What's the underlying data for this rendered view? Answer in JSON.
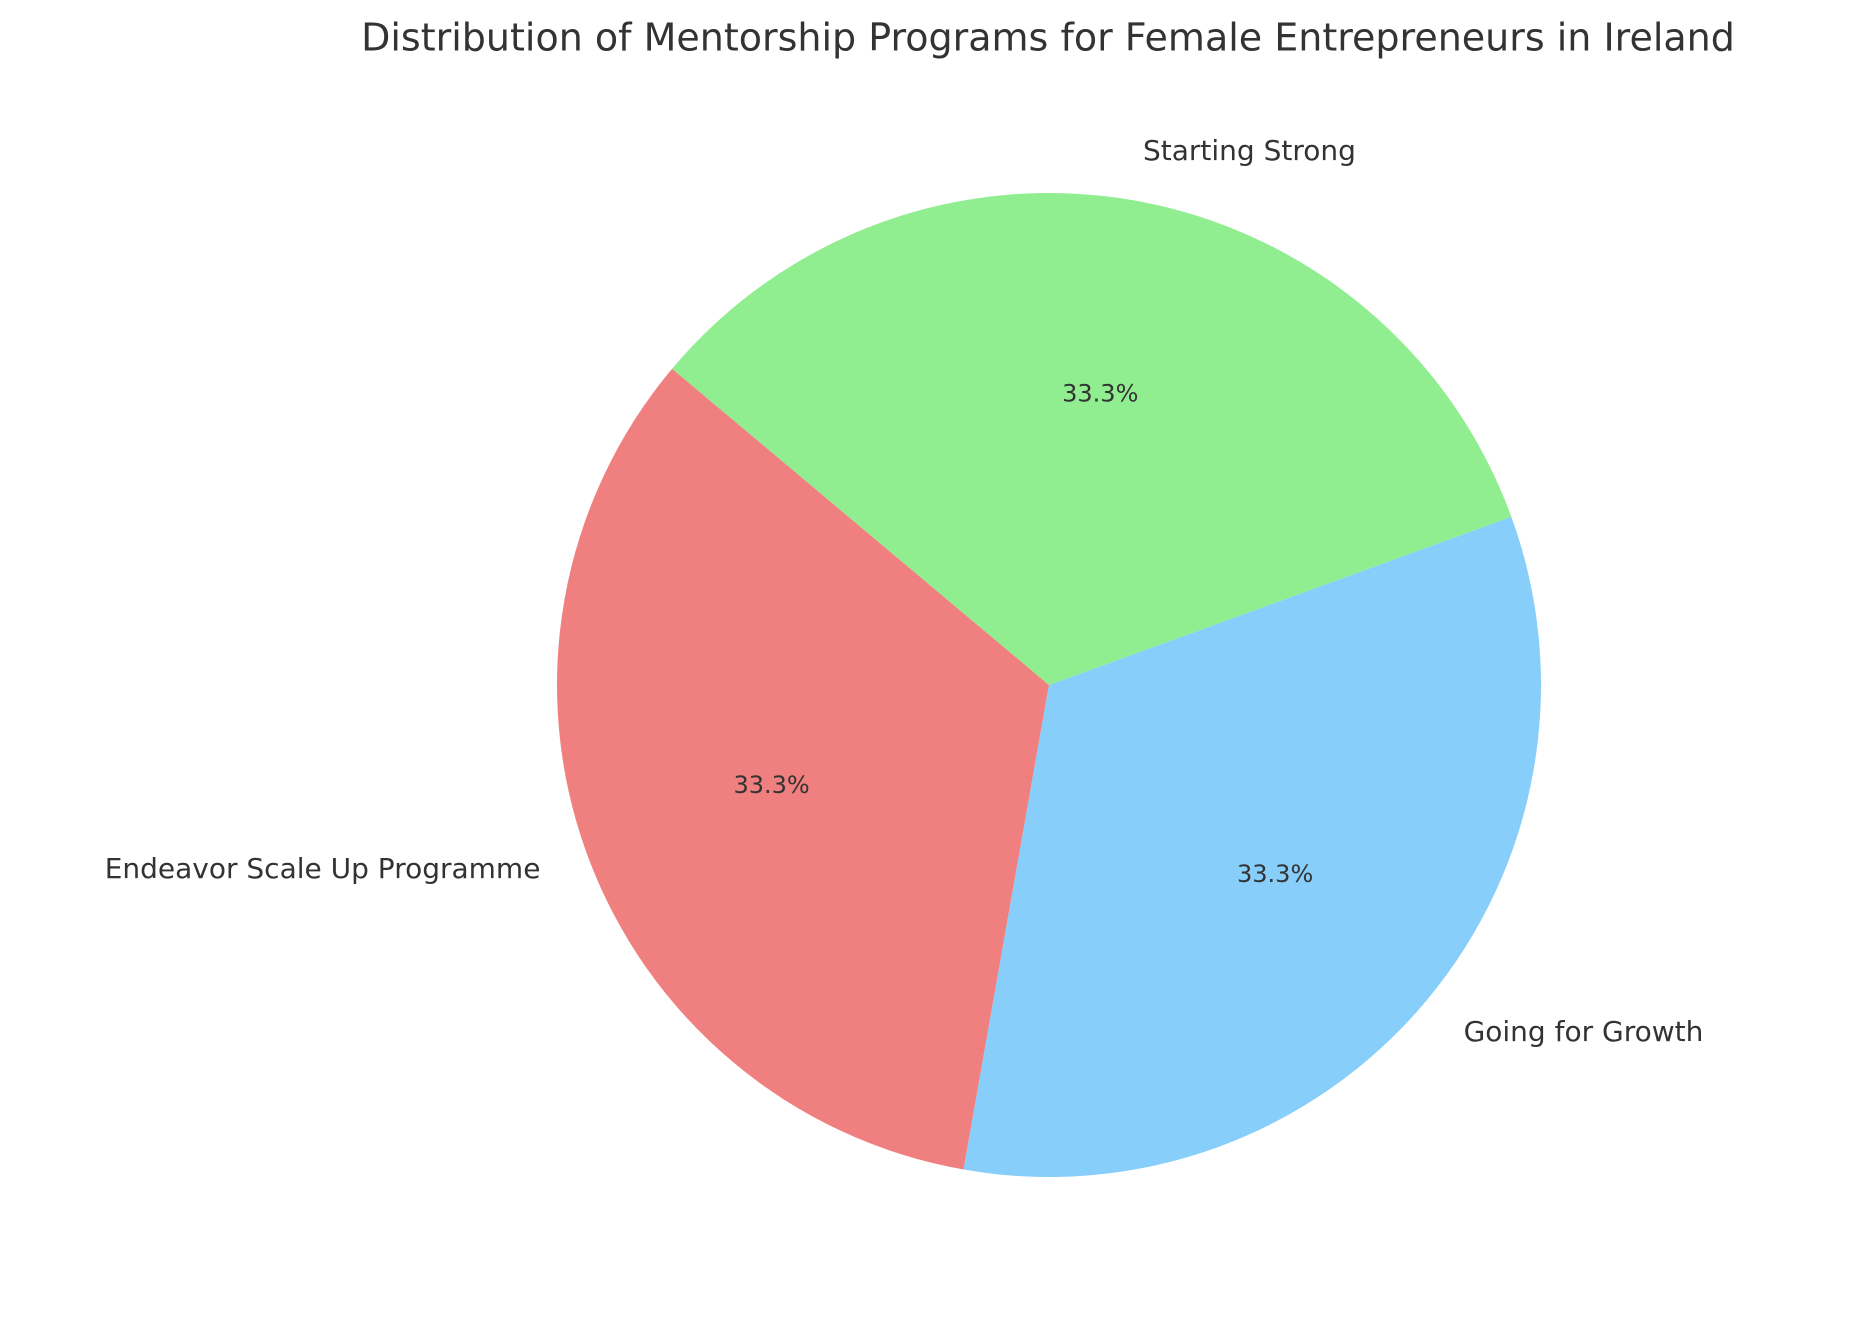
{
  "chart_data": {
    "type": "pie",
    "title": "Distribution of Mentorship Programs for Female Entrepreneurs in Ireland",
    "categories": [
      "Endeavor Scale Up Programme",
      "Going for Growth",
      "Starting Strong"
    ],
    "values": [
      33.3,
      33.3,
      33.3
    ],
    "value_labels": [
      "33.3%",
      "33.3%",
      "33.3%"
    ],
    "colors": [
      "#f08080",
      "#87cefa",
      "#90ee90"
    ],
    "start_angle": 140
  }
}
